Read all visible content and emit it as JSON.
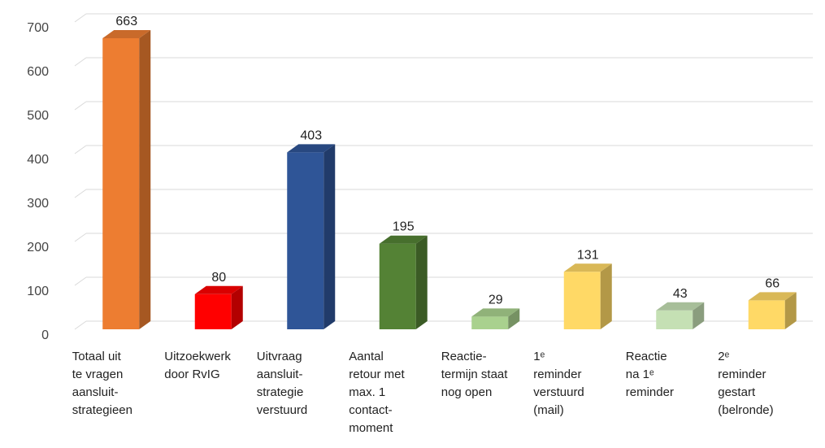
{
  "chart_data": {
    "type": "bar3d",
    "categories": [
      [
        "Totaal uit",
        "te vragen",
        "aansluit-",
        "strategieen"
      ],
      [
        "Uitzoekwerk",
        "door RvIG"
      ],
      [
        "Uitvraag",
        "aansluit-",
        "strategie",
        "verstuurd"
      ],
      [
        "Aantal",
        "retour met",
        "max. 1",
        "contact-",
        "moment"
      ],
      [
        "Reactie-",
        "termijn staat",
        "nog open"
      ],
      [
        "1ᵉ",
        "reminder",
        "verstuurd",
        "(mail)"
      ],
      [
        "Reactie",
        "na 1ᵉ",
        "reminder"
      ],
      [
        "2ᵉ",
        "reminder",
        "gestart",
        "(belronde)"
      ]
    ],
    "values": [
      663,
      80,
      403,
      195,
      29,
      131,
      43,
      66
    ],
    "colors": [
      "#ed7d31",
      "#ff0000",
      "#2f5597",
      "#548235",
      "#a9d18e",
      "#ffd966",
      "#c5e0b4",
      "#ffd966"
    ],
    "ylim": [
      0,
      700
    ],
    "yticks": [
      0,
      100,
      200,
      300,
      400,
      500,
      600,
      700
    ],
    "grid": true
  }
}
